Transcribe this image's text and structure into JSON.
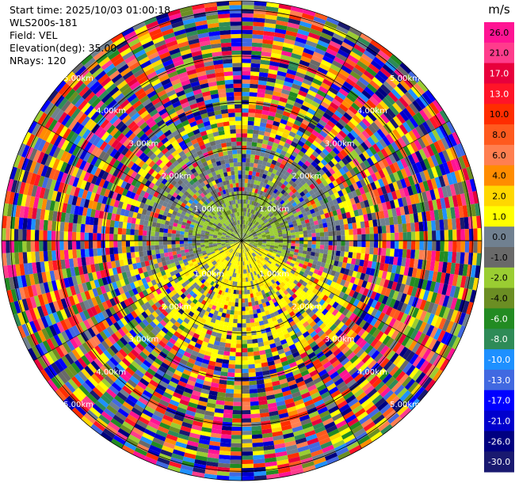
{
  "info": {
    "start_time": "Start time: 2025/10/03 01:00:18",
    "instrument": "WLS200s-181",
    "field": "Field: VEL",
    "elevation": "Elevation(deg): 35.00",
    "nrays": "NRays: 120"
  },
  "chart_data": {
    "type": "heatmap",
    "projection": "polar-ppi",
    "title": "",
    "n_rays": 120,
    "range_ring_labels": [
      "1.00km",
      "2.00km",
      "3.00km",
      "4.00km",
      "5.00km"
    ],
    "max_range_km": 5.2,
    "colorbar": {
      "unit": "m/s",
      "ticks": [
        "26.0",
        "21.0",
        "17.0",
        "13.0",
        "10.0",
        "8.0",
        "6.0",
        "4.0",
        "2.0",
        "1.0",
        "0.0",
        "-1.0",
        "-2.0",
        "-4.0",
        "-6.0",
        "-8.0",
        "-10.0",
        "-13.0",
        "-17.0",
        "-21.0",
        "-26.0",
        "-30.0"
      ],
      "colors": [
        "#ff1493",
        "#ff3c8c",
        "#e8003c",
        "#ff1428",
        "#ff2d00",
        "#ff5a1e",
        "#ff7f50",
        "#ff8c00",
        "#ffd700",
        "#ffff00",
        "#708090",
        "#696969",
        "#9acd32",
        "#6b8e23",
        "#228b22",
        "#2e8b57",
        "#1e90ff",
        "#4169e1",
        "#0000ff",
        "#0000cd",
        "#000080",
        "#191970"
      ]
    }
  }
}
